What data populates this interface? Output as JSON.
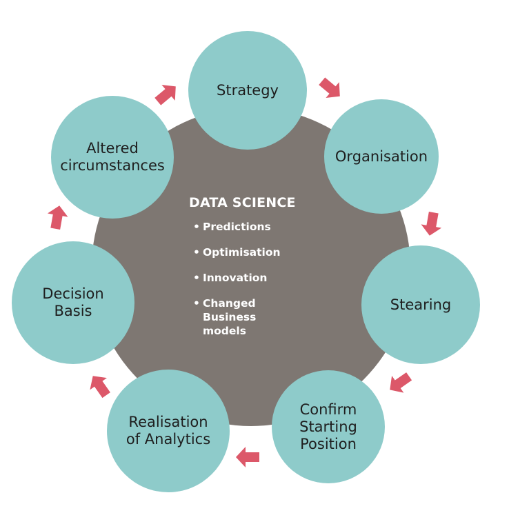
{
  "colors": {
    "satellite": "#8ecbca",
    "hub": "#7e7772",
    "arrow": "#dc5869"
  },
  "center": {
    "title": "DATA SCIENCE",
    "items": [
      "Predictions",
      "Optimisation",
      "Innovation",
      "Changed\nBusiness\nmodels"
    ]
  },
  "stages": [
    {
      "id": "strategy",
      "label": "Strategy"
    },
    {
      "id": "organisation",
      "label": "Organisation"
    },
    {
      "id": "stearing",
      "label": "Stearing"
    },
    {
      "id": "confirm",
      "label": "Confirm\nStarting\nPosition"
    },
    {
      "id": "realisation",
      "label": "Realisation\nof Analytics"
    },
    {
      "id": "decision",
      "label": "Decision\nBasis"
    },
    {
      "id": "altered",
      "label": "Altered\ncircumstances"
    }
  ],
  "arrow_icon": "arrow-right-icon"
}
